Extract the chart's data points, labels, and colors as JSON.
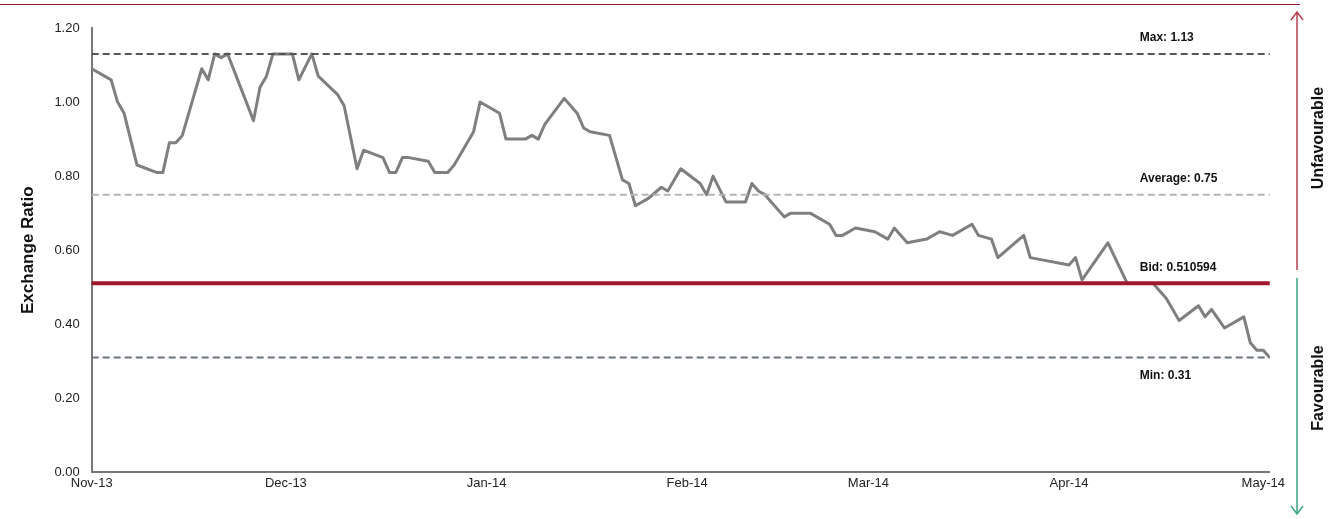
{
  "chart_data": {
    "type": "line",
    "ylabel": "Exchange Ratio",
    "x": [
      "2013-11-01",
      "2013-11-04",
      "2013-11-05",
      "2013-11-06",
      "2013-11-08",
      "2013-11-11",
      "2013-11-12",
      "2013-11-13",
      "2013-11-14",
      "2013-11-15",
      "2013-11-18",
      "2013-11-19",
      "2013-11-20",
      "2013-11-21",
      "2013-11-22",
      "2013-11-26",
      "2013-11-27",
      "2013-11-28",
      "2013-11-29",
      "2013-12-02",
      "2013-12-03",
      "2013-12-05",
      "2013-12-06",
      "2013-12-09",
      "2013-12-10",
      "2013-12-12",
      "2013-12-13",
      "2013-12-16",
      "2013-12-17",
      "2013-12-18",
      "2013-12-19",
      "2013-12-20",
      "2013-12-23",
      "2013-12-24",
      "2013-12-26",
      "2013-12-27",
      "2013-12-28",
      "2013-12-30",
      "2013-12-31",
      "2014-01-02",
      "2014-01-03",
      "2014-01-04",
      "2014-01-07",
      "2014-01-08",
      "2014-01-09",
      "2014-01-10",
      "2014-01-13",
      "2014-01-15",
      "2014-01-16",
      "2014-01-17",
      "2014-01-20",
      "2014-01-21",
      "2014-01-22",
      "2014-01-23",
      "2014-01-24",
      "2014-01-26",
      "2014-01-28",
      "2014-01-29",
      "2014-01-31",
      "2014-02-03",
      "2014-02-04",
      "2014-02-05",
      "2014-02-07",
      "2014-02-10",
      "2014-02-11",
      "2014-02-12",
      "2014-02-13",
      "2014-02-16",
      "2014-02-17",
      "2014-02-19",
      "2014-02-20",
      "2014-02-23",
      "2014-02-24",
      "2014-02-25",
      "2014-02-27",
      "2014-03-02",
      "2014-03-04",
      "2014-03-05",
      "2014-03-07",
      "2014-03-10",
      "2014-03-12",
      "2014-03-14",
      "2014-03-17",
      "2014-03-18",
      "2014-03-20",
      "2014-03-21",
      "2014-03-25",
      "2014-03-26",
      "2014-04-01",
      "2014-04-02",
      "2014-04-03",
      "2014-04-07",
      "2014-04-10",
      "2014-04-14",
      "2014-04-15",
      "2014-04-16",
      "2014-04-18",
      "2014-04-21",
      "2014-04-22",
      "2014-04-23",
      "2014-04-25",
      "2014-04-28",
      "2014-04-29",
      "2014-04-30",
      "2014-05-01",
      "2014-05-02"
    ],
    "series": [
      {
        "color": "#7f7f7f",
        "values": [
          1.09,
          1.06,
          1.0,
          0.97,
          0.83,
          0.81,
          0.81,
          0.89,
          0.89,
          0.91,
          1.09,
          1.06,
          1.13,
          1.12,
          1.13,
          0.95,
          1.04,
          1.07,
          1.13,
          1.13,
          1.06,
          1.13,
          1.07,
          1.02,
          0.99,
          0.82,
          0.87,
          0.85,
          0.81,
          0.81,
          0.85,
          0.85,
          0.84,
          0.81,
          0.81,
          0.83,
          0.86,
          0.92,
          1.0,
          0.98,
          0.97,
          0.9,
          0.9,
          0.91,
          0.9,
          0.94,
          1.01,
          0.97,
          0.93,
          0.92,
          0.91,
          0.85,
          0.79,
          0.78,
          0.72,
          0.74,
          0.77,
          0.76,
          0.82,
          0.78,
          0.75,
          0.8,
          0.73,
          0.73,
          0.78,
          0.76,
          0.75,
          0.69,
          0.7,
          0.7,
          0.7,
          0.67,
          0.64,
          0.64,
          0.66,
          0.65,
          0.63,
          0.66,
          0.62,
          0.63,
          0.65,
          0.64,
          0.67,
          0.64,
          0.63,
          0.58,
          0.64,
          0.58,
          0.56,
          0.58,
          0.52,
          0.62,
          0.51,
          0.51,
          0.49,
          0.47,
          0.41,
          0.45,
          0.42,
          0.44,
          0.39,
          0.42,
          0.35,
          0.33,
          0.33,
          0.31
        ]
      }
    ],
    "xlim": [
      "2013-11-01",
      "2014-05-02"
    ],
    "xticks": [
      {
        "value": "2013-11-01",
        "label": "Nov-13"
      },
      {
        "value": "2013-12-01",
        "label": "Dec-13"
      },
      {
        "value": "2014-01-01",
        "label": "Jan-14"
      },
      {
        "value": "2014-02-01",
        "label": "Feb-14"
      },
      {
        "value": "2014-03-01",
        "label": "Mar-14"
      },
      {
        "value": "2014-04-01",
        "label": "Apr-14"
      },
      {
        "value": "2014-05-01",
        "label": "May-14"
      }
    ],
    "ylim": [
      0,
      1.2
    ],
    "yticks": [
      {
        "value": 0,
        "label": "0.00"
      },
      {
        "value": 0.2,
        "label": "0.20"
      },
      {
        "value": 0.4,
        "label": "0.40"
      },
      {
        "value": 0.6,
        "label": "0.60"
      },
      {
        "value": 0.8,
        "label": "0.80"
      },
      {
        "value": 1.0,
        "label": "1.00"
      },
      {
        "value": 1.2,
        "label": "1.20"
      }
    ],
    "ref_lines": [
      {
        "axis": "y",
        "value": 1.13,
        "label": "Max: 1.13",
        "color": "#555555",
        "line_style": "dashed"
      },
      {
        "axis": "y",
        "value": 0.75,
        "label": "Average: 0.75",
        "color": "#b5b5b5",
        "line_style": "dashed"
      },
      {
        "axis": "y",
        "value": 0.510594,
        "label": "Bid: 0.510594",
        "color": "#a0182c",
        "line_style": "solid"
      },
      {
        "axis": "y",
        "value": 0.31,
        "label": "Min: 0.31",
        "color": "#6b7380",
        "line_style": "dashed"
      }
    ],
    "annotations": [
      "Unfavourable",
      "Favourable"
    ],
    "grid": false,
    "legend": false,
    "marker": "none",
    "line_style": "solid"
  }
}
